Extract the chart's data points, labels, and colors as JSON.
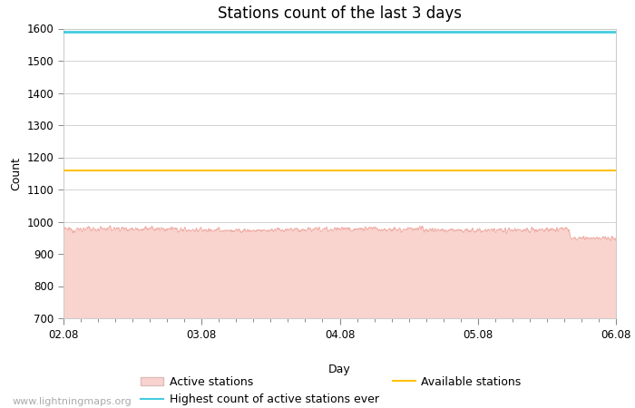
{
  "title": "Stations count of the last 3 days",
  "xlabel": "Day",
  "ylabel": "Count",
  "ylim": [
    700,
    1600
  ],
  "yticks": [
    700,
    800,
    900,
    1000,
    1100,
    1200,
    1300,
    1400,
    1500,
    1600
  ],
  "xlim_start": 0,
  "xlim_end": 96,
  "x_tick_positions": [
    0,
    24,
    48,
    72,
    96
  ],
  "x_tick_labels": [
    "02.08",
    "03.08",
    "04.08",
    "05.08",
    "06.08"
  ],
  "active_stations_mean": 975,
  "active_stations_noise": 8,
  "highest_ever": 1590,
  "available_stations": 1160,
  "active_fill_color": "#f9d4cf",
  "active_line_color": "#f0b0a8",
  "highest_ever_color": "#44ccdd",
  "available_color": "#ffc107",
  "background_color": "#ffffff",
  "grid_color": "#cccccc",
  "title_fontsize": 12,
  "axis_fontsize": 9,
  "tick_fontsize": 8.5,
  "legend_fontsize": 9,
  "watermark": "www.lightningmaps.org",
  "watermark_fontsize": 8,
  "drop_x": 88,
  "drop_amount": 30
}
